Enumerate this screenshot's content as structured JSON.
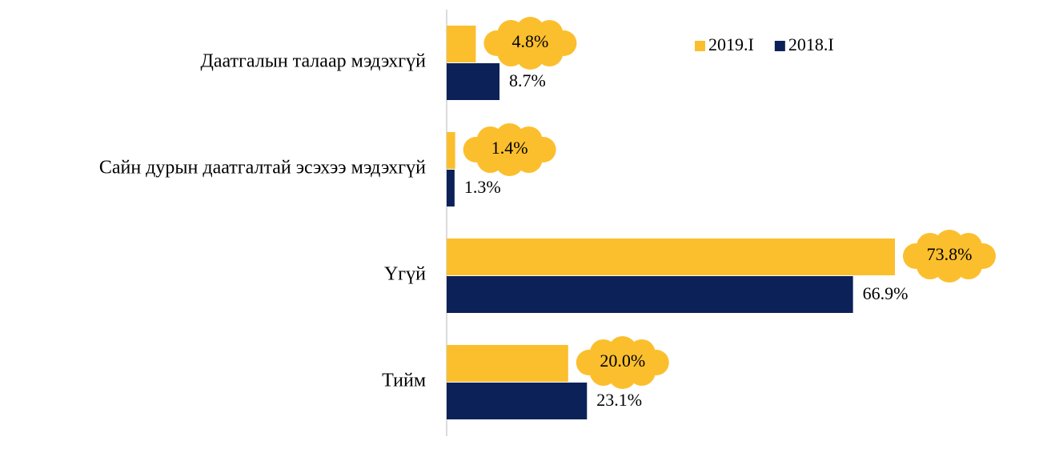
{
  "chart_data": {
    "type": "bar",
    "orientation": "horizontal",
    "categories": [
      "Даатгалын талаар мэдэхгүй",
      "Сайн дурын даатгалтай эсэхээ мэдэхгүй",
      "Үгүй",
      "Тийм"
    ],
    "series": [
      {
        "name": "2019.I",
        "color": "#FBBF2E",
        "values": [
          4.8,
          1.4,
          73.8,
          20.0
        ],
        "value_labels": [
          "4.8%",
          "1.4%",
          "73.8%",
          "20.0%"
        ]
      },
      {
        "name": "2018.I",
        "color": "#0B2158",
        "values": [
          8.7,
          1.3,
          66.9,
          23.1
        ],
        "value_labels": [
          "8.7%",
          "1.3%",
          "66.9%",
          "23.1%"
        ]
      }
    ],
    "legend": "top"
  }
}
